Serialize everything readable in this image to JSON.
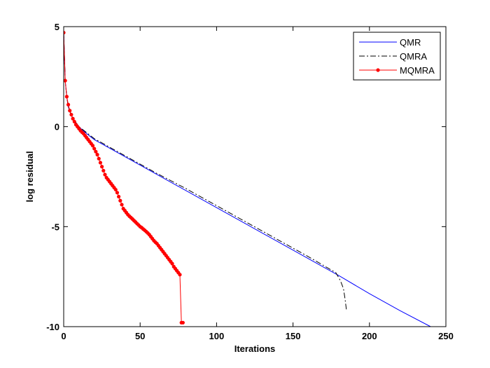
{
  "chart_data": {
    "type": "line",
    "title": "",
    "xlabel": "Iterations",
    "ylabel": "log residual",
    "xlim": [
      0,
      250
    ],
    "ylim": [
      -10,
      5
    ],
    "xticks": [
      0,
      50,
      100,
      150,
      200,
      250
    ],
    "yticks": [
      -10,
      -5,
      0,
      5
    ],
    "grid": false,
    "legend_position": "top-right",
    "series": [
      {
        "name": "QMR",
        "color": "#0000ff",
        "line_style": "solid",
        "marker": "none",
        "x": [
          0,
          1,
          2,
          3,
          5,
          8,
          10,
          12,
          15,
          20,
          40,
          60,
          80,
          100,
          120,
          140,
          160,
          180,
          200,
          220,
          240
        ],
        "y": [
          4.7,
          2.3,
          1.5,
          1.0,
          0.55,
          0.2,
          0.0,
          -0.15,
          -0.35,
          -0.65,
          -1.5,
          -2.35,
          -3.2,
          -4.05,
          -4.9,
          -5.75,
          -6.6,
          -7.45,
          -8.35,
          -9.2,
          -10.0
        ]
      },
      {
        "name": "QMRA",
        "color": "#000000",
        "line_style": "dashdot",
        "marker": "none",
        "x": [
          0,
          1,
          2,
          3,
          5,
          8,
          10,
          12,
          15,
          20,
          40,
          60,
          80,
          100,
          120,
          140,
          160,
          178,
          181,
          183,
          184,
          185
        ],
        "y": [
          4.7,
          2.3,
          1.5,
          1.0,
          0.55,
          0.2,
          0.0,
          -0.12,
          -0.3,
          -0.6,
          -1.45,
          -2.3,
          -3.1,
          -3.95,
          -4.8,
          -5.65,
          -6.5,
          -7.3,
          -7.7,
          -8.1,
          -8.6,
          -9.2
        ]
      },
      {
        "name": "MQMRA",
        "color": "#ff0000",
        "line_style": "solid",
        "marker": "dot",
        "x": [
          0,
          1,
          2,
          3,
          4,
          5,
          6,
          7,
          8,
          9,
          10,
          11,
          12,
          13,
          14,
          15,
          16,
          17,
          18,
          19,
          20,
          21,
          22,
          23,
          24,
          25,
          26,
          27,
          28,
          29,
          30,
          31,
          32,
          33,
          34,
          35,
          36,
          37,
          38,
          39,
          40,
          41,
          42,
          43,
          44,
          45,
          46,
          47,
          48,
          49,
          50,
          51,
          52,
          53,
          54,
          55,
          56,
          57,
          58,
          59,
          60,
          61,
          62,
          63,
          64,
          65,
          66,
          67,
          68,
          69,
          70,
          71,
          72,
          73,
          74,
          75,
          76,
          77,
          78
        ],
        "y": [
          4.7,
          2.3,
          1.5,
          1.1,
          0.8,
          0.6,
          0.4,
          0.25,
          0.1,
          0.0,
          -0.1,
          -0.2,
          -0.28,
          -0.35,
          -0.45,
          -0.55,
          -0.65,
          -0.75,
          -0.85,
          -0.95,
          -1.1,
          -1.25,
          -1.4,
          -1.6,
          -1.8,
          -2.0,
          -2.2,
          -2.4,
          -2.55,
          -2.65,
          -2.75,
          -2.85,
          -2.95,
          -3.05,
          -3.15,
          -3.3,
          -3.5,
          -3.7,
          -3.9,
          -4.1,
          -4.2,
          -4.3,
          -4.4,
          -4.48,
          -4.55,
          -4.62,
          -4.7,
          -4.77,
          -4.85,
          -4.92,
          -5.0,
          -5.05,
          -5.12,
          -5.18,
          -5.25,
          -5.32,
          -5.4,
          -5.5,
          -5.6,
          -5.7,
          -5.78,
          -5.85,
          -5.95,
          -6.05,
          -6.15,
          -6.25,
          -6.35,
          -6.45,
          -6.55,
          -6.65,
          -6.75,
          -6.85,
          -7.0,
          -7.1,
          -7.2,
          -7.3,
          -7.4,
          -9.8,
          -9.8
        ]
      }
    ]
  }
}
